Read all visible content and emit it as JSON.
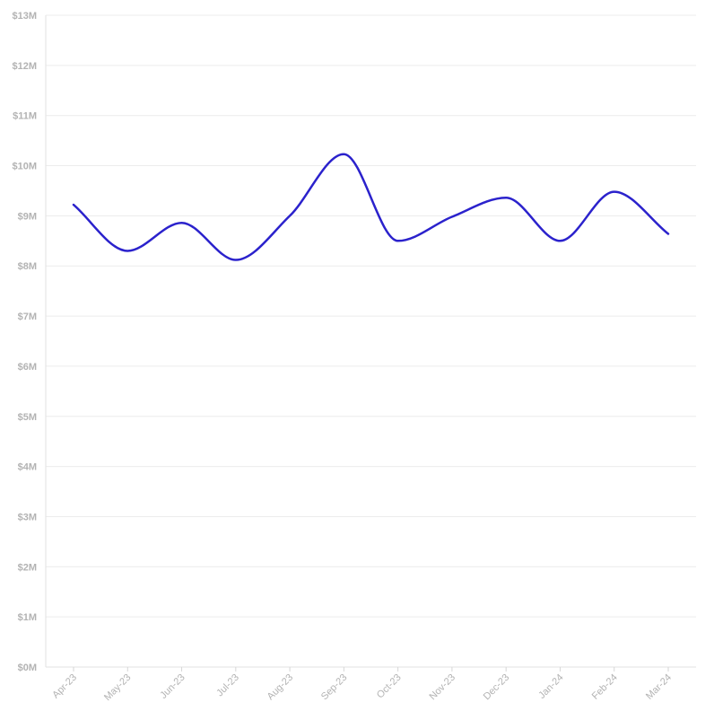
{
  "chart_data": {
    "type": "line",
    "title": "",
    "xlabel": "",
    "ylabel": "",
    "categories": [
      "Apr-23",
      "May-23",
      "Jun-23",
      "Jul-23",
      "Aug-23",
      "Sep-23",
      "Oct-23",
      "Nov-23",
      "Dec-23",
      "Jan-24",
      "Feb-24",
      "Mar-24"
    ],
    "series": [
      {
        "color": "#2b22cc",
        "values": [
          9.22,
          8.3,
          8.86,
          8.12,
          9.0,
          10.23,
          8.5,
          8.98,
          9.36,
          8.5,
          9.48,
          8.64
        ]
      }
    ],
    "ylim": [
      0,
      13
    ],
    "y_ticks": [
      0,
      1,
      2,
      3,
      4,
      5,
      6,
      7,
      8,
      9,
      10,
      11,
      12,
      13
    ],
    "y_tick_labels": [
      "$0M",
      "$1M",
      "$2M",
      "$3M",
      "$4M",
      "$5M",
      "$6M",
      "$7M",
      "$8M",
      "$9M",
      "$10M",
      "$11M",
      "$12M",
      "$13M"
    ],
    "grid": true,
    "legend": "none",
    "curve": "smooth"
  }
}
